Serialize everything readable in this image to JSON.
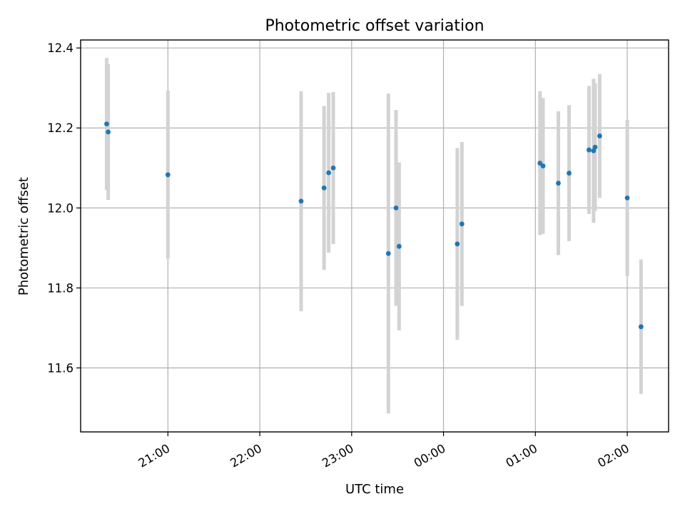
{
  "chart_data": {
    "type": "scatter",
    "title": "Photometric offset variation",
    "xlabel": "UTC time",
    "ylabel": "Photometric offset",
    "x_axis_kind": "time",
    "xlim": [
      "20:03",
      "02:27"
    ],
    "ylim": [
      11.44,
      12.42
    ],
    "x_ticks": [
      "21:00",
      "22:00",
      "23:00",
      "00:00",
      "01:00",
      "02:00"
    ],
    "y_ticks": [
      11.6,
      11.8,
      12.0,
      12.2,
      12.4
    ],
    "grid": true,
    "point_color": "#1f77b4",
    "errorbar_color": "#d3d3d3",
    "points": [
      {
        "t": "20:20",
        "y": 12.21,
        "err": 0.165
      },
      {
        "t": "20:21",
        "y": 12.19,
        "err": 0.17
      },
      {
        "t": "21:00",
        "y": 12.083,
        "err": 0.21
      },
      {
        "t": "22:27",
        "y": 12.017,
        "err": 0.275
      },
      {
        "t": "22:42",
        "y": 12.05,
        "err": 0.205
      },
      {
        "t": "22:45",
        "y": 12.088,
        "err": 0.2
      },
      {
        "t": "22:48",
        "y": 12.1,
        "err": 0.19
      },
      {
        "t": "23:24",
        "y": 11.886,
        "err": 0.4
      },
      {
        "t": "23:29",
        "y": 12.0,
        "err": 0.245
      },
      {
        "t": "23:31",
        "y": 11.904,
        "err": 0.21
      },
      {
        "t": "00:09",
        "y": 11.91,
        "err": 0.24
      },
      {
        "t": "00:12",
        "y": 11.96,
        "err": 0.205
      },
      {
        "t": "01:03",
        "y": 12.112,
        "err": 0.18
      },
      {
        "t": "01:05",
        "y": 12.105,
        "err": 0.17
      },
      {
        "t": "01:15",
        "y": 12.062,
        "err": 0.18
      },
      {
        "t": "01:22",
        "y": 12.087,
        "err": 0.17
      },
      {
        "t": "01:35",
        "y": 12.145,
        "err": 0.16
      },
      {
        "t": "01:38",
        "y": 12.143,
        "err": 0.18
      },
      {
        "t": "01:39",
        "y": 12.152,
        "err": 0.16
      },
      {
        "t": "01:42",
        "y": 12.18,
        "err": 0.155
      },
      {
        "t": "02:00",
        "y": 12.025,
        "err": 0.195
      },
      {
        "t": "02:09",
        "y": 11.703,
        "err": 0.168
      }
    ]
  }
}
